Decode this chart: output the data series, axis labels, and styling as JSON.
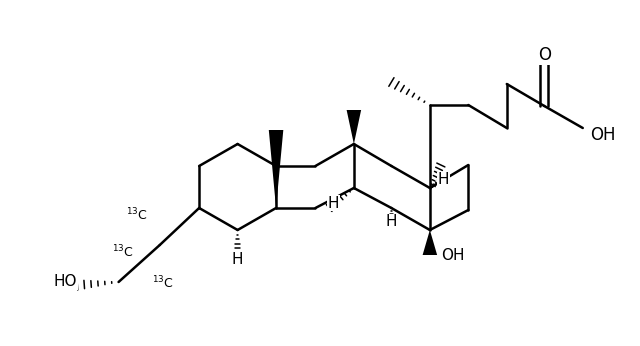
{
  "figsize": [
    6.4,
    3.46
  ],
  "dpi": 100,
  "bg": "#ffffff",
  "lw": 1.8,
  "xlim": [
    0,
    10.5
  ],
  "ylim": [
    3.0,
    9.2
  ]
}
